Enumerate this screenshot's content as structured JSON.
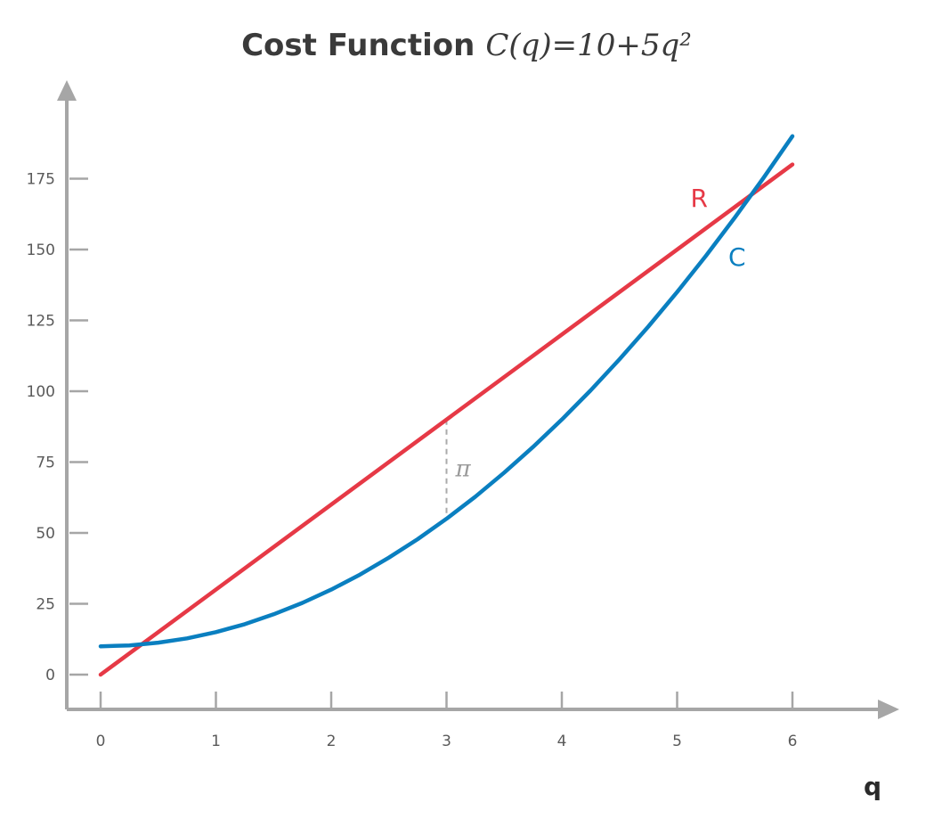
{
  "chart_data": {
    "type": "line",
    "title": "Cost Function",
    "title_formula": "C(q)=10+5q²",
    "xlabel": "q",
    "ylabel": "",
    "xlim": [
      0,
      6
    ],
    "ylim": [
      0,
      175
    ],
    "x_ticks": [
      "0",
      "1",
      "2",
      "3",
      "4",
      "5",
      "6"
    ],
    "y_ticks": [
      "0",
      "25",
      "50",
      "75",
      "100",
      "125",
      "150",
      "175"
    ],
    "grid": false,
    "series": [
      {
        "name": "R",
        "color": "#e63946",
        "x": [
          0,
          6
        ],
        "y": [
          0,
          180
        ]
      },
      {
        "name": "C",
        "color": "#0a7fc0",
        "x": [
          0,
          0.25,
          0.5,
          0.75,
          1,
          1.25,
          1.5,
          1.75,
          2,
          2.25,
          2.5,
          2.75,
          3,
          3.25,
          3.5,
          3.75,
          4,
          4.25,
          4.5,
          4.75,
          5,
          5.25,
          5.5,
          5.75,
          6
        ],
        "y": [
          10,
          10.3,
          11.3,
          12.8,
          15,
          17.8,
          21.3,
          25.3,
          30,
          35.3,
          41.3,
          47.8,
          55,
          62.8,
          71.3,
          80.3,
          90,
          100.3,
          111.3,
          122.8,
          135,
          147.8,
          161.3,
          175.3,
          190
        ]
      }
    ],
    "annotations": [
      {
        "label": "π",
        "x": 3,
        "y_from": 55,
        "y_to": 90,
        "color": "#aaaaaa"
      }
    ]
  }
}
